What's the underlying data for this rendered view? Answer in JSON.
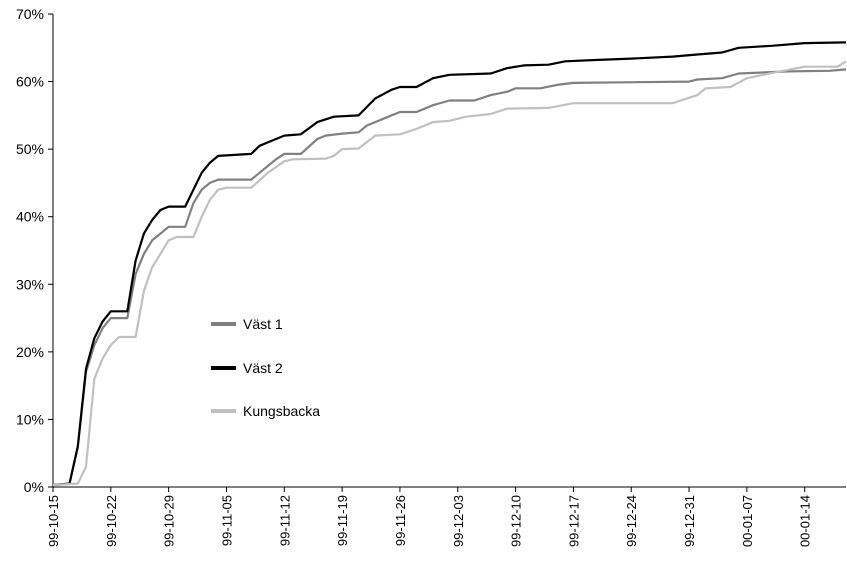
{
  "chart_data": {
    "type": "line",
    "title": "",
    "xlabel": "",
    "ylabel": "",
    "ylim": [
      0,
      70
    ],
    "y_ticks": [
      "0%",
      "10%",
      "20%",
      "30%",
      "40%",
      "50%",
      "60%",
      "70%"
    ],
    "x_ticks": [
      "99-10-15",
      "99-10-22",
      "99-10-29",
      "99-11-05",
      "99-11-12",
      "99-11-19",
      "99-11-26",
      "99-12-03",
      "99-12-10",
      "99-12-17",
      "99-12-24",
      "99-12-31",
      "00-01-07",
      "00-01-14"
    ],
    "x_range": [
      "99-10-15",
      "00-01-19"
    ],
    "grid": false,
    "legend_position": "center-left",
    "series": [
      {
        "name": "Väst 1",
        "color": "#808080",
        "points": [
          [
            "99-10-15",
            0.3
          ],
          [
            "99-10-17",
            0.5
          ],
          [
            "99-10-18",
            6
          ],
          [
            "99-10-19",
            17
          ],
          [
            "99-10-20",
            21
          ],
          [
            "99-10-21",
            23.5
          ],
          [
            "99-10-22",
            25
          ],
          [
            "99-10-24",
            25
          ],
          [
            "99-10-25",
            31.5
          ],
          [
            "99-10-26",
            34.5
          ],
          [
            "99-10-27",
            36.5
          ],
          [
            "99-10-28",
            37.5
          ],
          [
            "99-10-29",
            38.5
          ],
          [
            "99-10-31",
            38.5
          ],
          [
            "99-11-01",
            42
          ],
          [
            "99-11-02",
            44
          ],
          [
            "99-11-03",
            45
          ],
          [
            "99-11-04",
            45.5
          ],
          [
            "99-11-08",
            45.5
          ],
          [
            "99-11-10",
            47.5
          ],
          [
            "99-11-11",
            48.5
          ],
          [
            "99-11-12",
            49.3
          ],
          [
            "99-11-14",
            49.3
          ],
          [
            "99-11-16",
            51.5
          ],
          [
            "99-11-17",
            52
          ],
          [
            "99-11-19",
            52.3
          ],
          [
            "99-11-21",
            52.5
          ],
          [
            "99-11-22",
            53.5
          ],
          [
            "99-11-24",
            54.5
          ],
          [
            "99-11-26",
            55.5
          ],
          [
            "99-11-28",
            55.5
          ],
          [
            "99-11-30",
            56.5
          ],
          [
            "99-12-02",
            57.2
          ],
          [
            "99-12-05",
            57.2
          ],
          [
            "99-12-07",
            58
          ],
          [
            "99-12-09",
            58.5
          ],
          [
            "99-12-10",
            59
          ],
          [
            "99-12-13",
            59
          ],
          [
            "99-12-15",
            59.5
          ],
          [
            "99-12-17",
            59.8
          ],
          [
            "99-12-31",
            60
          ],
          [
            "00-01-01",
            60.3
          ],
          [
            "00-01-04",
            60.5
          ],
          [
            "00-01-06",
            61.2
          ],
          [
            "00-01-12",
            61.5
          ],
          [
            "00-01-17",
            61.6
          ],
          [
            "00-01-19",
            61.8
          ]
        ]
      },
      {
        "name": "Väst 2",
        "color": "#000000",
        "points": [
          [
            "99-10-15",
            0.3
          ],
          [
            "99-10-17",
            0.5
          ],
          [
            "99-10-18",
            6
          ],
          [
            "99-10-19",
            17.5
          ],
          [
            "99-10-20",
            22
          ],
          [
            "99-10-21",
            24.5
          ],
          [
            "99-10-22",
            26
          ],
          [
            "99-10-24",
            26
          ],
          [
            "99-10-25",
            33.5
          ],
          [
            "99-10-26",
            37.5
          ],
          [
            "99-10-27",
            39.5
          ],
          [
            "99-10-28",
            41
          ],
          [
            "99-10-29",
            41.5
          ],
          [
            "99-10-31",
            41.5
          ],
          [
            "99-11-01",
            44
          ],
          [
            "99-11-02",
            46.5
          ],
          [
            "99-11-03",
            48
          ],
          [
            "99-11-04",
            49
          ],
          [
            "99-11-08",
            49.3
          ],
          [
            "99-11-09",
            50.5
          ],
          [
            "99-11-10",
            51
          ],
          [
            "99-11-12",
            52
          ],
          [
            "99-11-14",
            52.2
          ],
          [
            "99-11-16",
            54
          ],
          [
            "99-11-18",
            54.8
          ],
          [
            "99-11-21",
            55
          ],
          [
            "99-11-23",
            57.5
          ],
          [
            "99-11-25",
            58.8
          ],
          [
            "99-11-26",
            59.2
          ],
          [
            "99-11-28",
            59.2
          ],
          [
            "99-11-30",
            60.5
          ],
          [
            "99-12-02",
            61
          ],
          [
            "99-12-07",
            61.2
          ],
          [
            "99-12-09",
            62
          ],
          [
            "99-12-11",
            62.4
          ],
          [
            "99-12-14",
            62.5
          ],
          [
            "99-12-16",
            63
          ],
          [
            "99-12-20",
            63.2
          ],
          [
            "99-12-24",
            63.4
          ],
          [
            "99-12-29",
            63.7
          ],
          [
            "00-01-01",
            64
          ],
          [
            "00-01-04",
            64.3
          ],
          [
            "00-01-06",
            65
          ],
          [
            "00-01-10",
            65.3
          ],
          [
            "00-01-14",
            65.7
          ],
          [
            "00-01-19",
            65.8
          ]
        ]
      },
      {
        "name": "Kungsbacka",
        "color": "#c0c0c0",
        "points": [
          [
            "99-10-15",
            0.3
          ],
          [
            "99-10-18",
            0.5
          ],
          [
            "99-10-19",
            3
          ],
          [
            "99-10-20",
            16
          ],
          [
            "99-10-21",
            19
          ],
          [
            "99-10-22",
            21
          ],
          [
            "99-10-23",
            22.2
          ],
          [
            "99-10-25",
            22.2
          ],
          [
            "99-10-26",
            29
          ],
          [
            "99-10-27",
            32.5
          ],
          [
            "99-10-28",
            34.5
          ],
          [
            "99-10-29",
            36.5
          ],
          [
            "99-10-30",
            37
          ],
          [
            "99-11-01",
            37
          ],
          [
            "99-11-02",
            40
          ],
          [
            "99-11-03",
            42.5
          ],
          [
            "99-11-04",
            44
          ],
          [
            "99-11-05",
            44.3
          ],
          [
            "99-11-08",
            44.3
          ],
          [
            "99-11-10",
            46.5
          ],
          [
            "99-11-12",
            48.2
          ],
          [
            "99-11-13",
            48.5
          ],
          [
            "99-11-17",
            48.6
          ],
          [
            "99-11-18",
            49
          ],
          [
            "99-11-19",
            50
          ],
          [
            "99-11-21",
            50.1
          ],
          [
            "99-11-23",
            52
          ],
          [
            "99-11-26",
            52.2
          ],
          [
            "99-11-28",
            53
          ],
          [
            "99-11-30",
            54
          ],
          [
            "99-12-02",
            54.2
          ],
          [
            "99-12-04",
            54.8
          ],
          [
            "99-12-07",
            55.2
          ],
          [
            "99-12-09",
            56
          ],
          [
            "99-12-14",
            56.1
          ],
          [
            "99-12-17",
            56.8
          ],
          [
            "99-12-29",
            56.8
          ],
          [
            "00-01-01",
            58
          ],
          [
            "00-01-02",
            59
          ],
          [
            "00-01-05",
            59.2
          ],
          [
            "00-01-07",
            60.5
          ],
          [
            "00-01-09",
            61
          ],
          [
            "00-01-11",
            61.5
          ],
          [
            "00-01-14",
            62.2
          ],
          [
            "00-01-18",
            62.2
          ],
          [
            "00-01-19",
            63
          ]
        ]
      }
    ]
  }
}
